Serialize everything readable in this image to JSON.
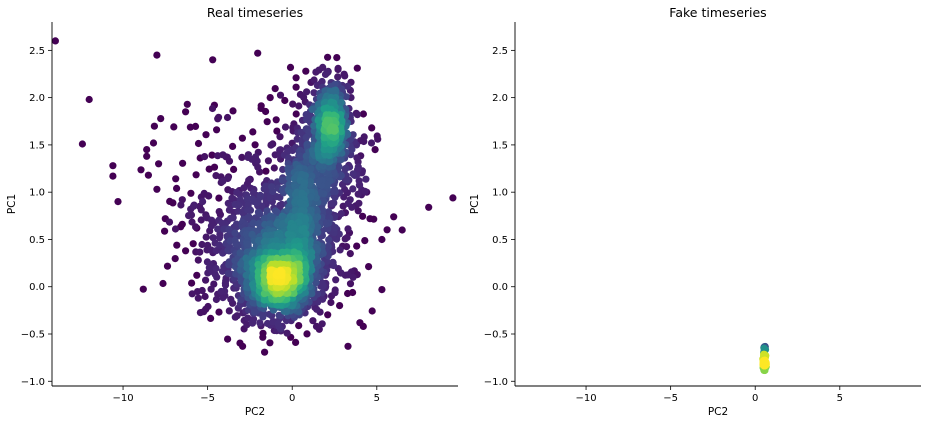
{
  "chart_data": [
    {
      "type": "scatter",
      "title": "Real timeseries",
      "xlabel": "PC2",
      "ylabel": "PC1",
      "xlim": [
        -14.2,
        9.8
      ],
      "ylim": [
        -1.05,
        2.8
      ],
      "xticks": [
        -10,
        -5,
        0,
        5
      ],
      "yticks": [
        -1.0,
        -0.5,
        0.0,
        0.5,
        1.0,
        1.5,
        2.0,
        2.5
      ],
      "grid": false,
      "colormap": "viridis",
      "color_encoding": "point density",
      "series": [
        {
          "clusters": [
            {
              "x": -0.8,
              "y": 0.05,
              "sx": 0.9,
              "sy": 0.16,
              "n": 900
            },
            {
              "x": -0.9,
              "y": 0.25,
              "sx": 1.6,
              "sy": 0.3,
              "n": 700
            },
            {
              "x": -1.5,
              "y": 0.5,
              "sx": 2.2,
              "sy": 0.35,
              "n": 450
            },
            {
              "x": 0.3,
              "y": 0.6,
              "sx": 0.5,
              "sy": 0.4,
              "n": 350
            },
            {
              "x": 1.2,
              "y": 1.2,
              "sx": 0.8,
              "sy": 0.35,
              "n": 300
            },
            {
              "x": 2.3,
              "y": 1.7,
              "sx": 0.5,
              "sy": 0.22,
              "n": 550
            },
            {
              "x": 2.5,
              "y": 1.25,
              "sx": 1.3,
              "sy": 0.45,
              "n": 160
            },
            {
              "x": -2.5,
              "y": 1.1,
              "sx": 2.5,
              "sy": 0.5,
              "n": 130
            }
          ],
          "outliers": [
            [
              -14.0,
              2.6
            ],
            [
              -8.0,
              2.45
            ],
            [
              -4.7,
              2.4
            ],
            [
              -12.0,
              1.98
            ],
            [
              -12.4,
              1.51
            ],
            [
              -10.6,
              1.28
            ],
            [
              -10.6,
              1.17
            ],
            [
              -10.3,
              0.9
            ],
            [
              -8.2,
              1.52
            ],
            [
              -8.6,
              1.45
            ],
            [
              -8.6,
              1.38
            ],
            [
              -7.9,
              1.3
            ],
            [
              -7.0,
              1.69
            ],
            [
              -6.2,
              1.93
            ],
            [
              -6.3,
              1.85
            ],
            [
              -8.5,
              1.18
            ],
            [
              -8.0,
              1.03
            ],
            [
              -7.5,
              0.72
            ],
            [
              -6.5,
              0.92
            ],
            [
              -6.0,
              0.82
            ],
            [
              -6.5,
              0.66
            ],
            [
              -4.6,
              1.92
            ],
            [
              -3.5,
              1.86
            ],
            [
              -6.3,
              0.38
            ],
            [
              -1.3,
              2.0
            ],
            [
              -0.1,
              2.32
            ],
            [
              0.8,
              2.28
            ],
            [
              1.4,
              2.27
            ],
            [
              1.8,
              2.32
            ],
            [
              3.1,
              2.23
            ],
            [
              9.5,
              0.94
            ],
            [
              6.0,
              0.74
            ],
            [
              6.5,
              0.6
            ],
            [
              5.3,
              0.5
            ],
            [
              5.3,
              -0.03
            ],
            [
              3.3,
              -0.63
            ],
            [
              4.0,
              -0.38
            ],
            [
              4.2,
              -0.42
            ],
            [
              1.6,
              -0.45
            ],
            [
              2.8,
              -0.2
            ],
            [
              3.6,
              0.1
            ],
            [
              4.6,
              0.72
            ],
            [
              4.4,
              1.0
            ],
            [
              3.8,
              1.5
            ],
            [
              4.7,
              1.68
            ],
            [
              4.9,
              1.45
            ],
            [
              -3.7,
              0.42
            ],
            [
              -4.9,
              0.2
            ],
            [
              -4.2,
              -0.05
            ],
            [
              -5.3,
              0.9
            ]
          ]
        }
      ]
    },
    {
      "type": "scatter",
      "title": "Fake timeseries",
      "xlabel": "PC2",
      "ylabel": "PC1",
      "xlim": [
        -14.2,
        9.8
      ],
      "ylim": [
        -1.05,
        2.8
      ],
      "xticks": [
        -10,
        -5,
        0,
        5
      ],
      "yticks": [
        -1.0,
        -0.5,
        0.0,
        0.5,
        1.0,
        1.5,
        2.0,
        2.5
      ],
      "grid": false,
      "colormap": "viridis",
      "color_encoding": "point density",
      "series": [
        {
          "clusters": [
            {
              "x": 0.55,
              "y": -0.83,
              "sx": 0.04,
              "sy": 0.025,
              "n": 80
            },
            {
              "x": 0.55,
              "y": -0.73,
              "sx": 0.04,
              "sy": 0.05,
              "n": 60
            }
          ],
          "outliers": [
            [
              0.55,
              -0.64
            ],
            [
              0.57,
              -0.67
            ],
            [
              0.53,
              -0.69
            ]
          ]
        }
      ]
    }
  ]
}
